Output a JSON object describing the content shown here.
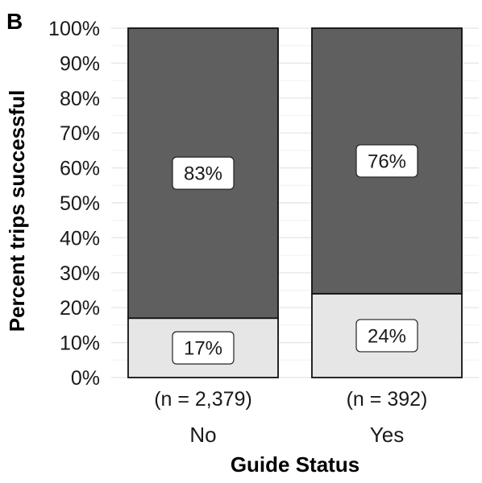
{
  "panel_letter": "B",
  "chart_data": {
    "type": "bar",
    "stacked": true,
    "percent": true,
    "title": "",
    "xlabel": "Guide Status",
    "ylabel": "Percent trips successful",
    "ylim": [
      0,
      100
    ],
    "y_ticks": [
      "0%",
      "10%",
      "20%",
      "30%",
      "40%",
      "50%",
      "60%",
      "70%",
      "80%",
      "90%",
      "100%"
    ],
    "grid": true,
    "categories": [
      "No",
      "Yes"
    ],
    "category_n": [
      "(n = 2,379)",
      "(n = 392)"
    ],
    "series": [
      {
        "values": [
          17,
          24
        ],
        "labels": [
          "17%",
          "24%"
        ],
        "color": "#e6e6e6"
      },
      {
        "values": [
          83,
          76
        ],
        "labels": [
          "83%",
          "76%"
        ],
        "color": "#5f5f5f"
      }
    ]
  }
}
